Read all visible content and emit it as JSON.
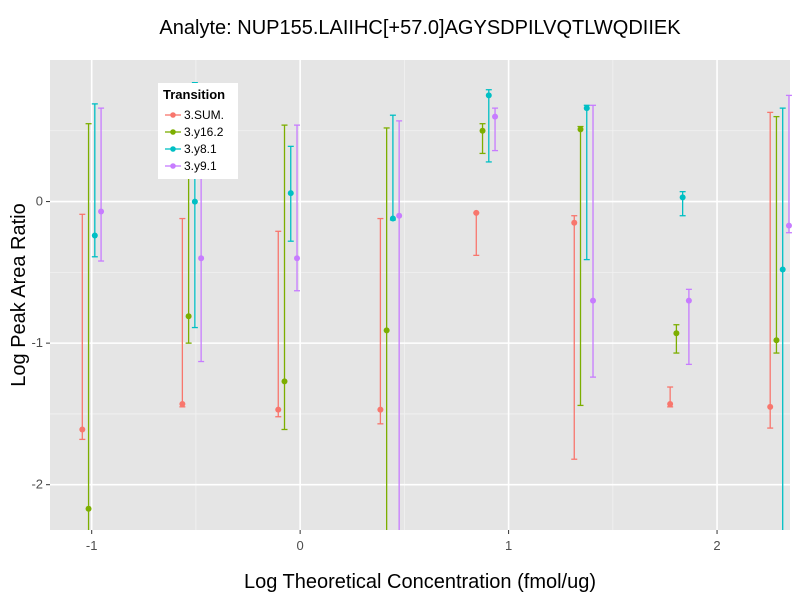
{
  "chart_data": {
    "type": "scatter",
    "title": "Analyte: NUP155.LAIIHC[+57.0]AGYSDPILVQTLWQDIIEK",
    "xlabel": "Log Theoretical Concentration (fmol/ug)",
    "ylabel": "Log Peak Area Ratio",
    "xlim": [
      -1.2,
      2.35
    ],
    "ylim": [
      -2.32,
      1.0
    ],
    "x_ticks": [
      -1,
      0,
      1,
      2
    ],
    "x_tick_labels": [
      "-1",
      "0",
      "1",
      "2"
    ],
    "y_ticks": [
      -2,
      -1,
      0
    ],
    "y_tick_labels": [
      "-2",
      "-1",
      "0"
    ],
    "grid": true,
    "legend": {
      "title": "Transition",
      "position": "top-left"
    },
    "x": [
      -1.0,
      -0.52,
      -0.06,
      0.43,
      0.89,
      1.36,
      1.82,
      2.3
    ],
    "series": [
      {
        "name": "3.SUM.",
        "color": "#F8766D",
        "points": [
          {
            "x": -1.0,
            "y": -1.61,
            "low": -1.68,
            "high": -0.09
          },
          {
            "x": -0.52,
            "y": -1.43,
            "low": -1.45,
            "high": -0.12
          },
          {
            "x": -0.06,
            "y": -1.47,
            "low": -1.52,
            "high": -0.21
          },
          {
            "x": 0.43,
            "y": -1.47,
            "low": -1.57,
            "high": -0.12
          },
          {
            "x": 0.89,
            "y": -0.08,
            "low": -0.38,
            "high": -0.08
          },
          {
            "x": 1.36,
            "y": -0.15,
            "low": -1.82,
            "high": -0.1
          },
          {
            "x": 1.82,
            "y": -1.43,
            "low": -1.45,
            "high": -1.31
          },
          {
            "x": 2.3,
            "y": -1.45,
            "low": -1.6,
            "high": 0.63
          }
        ]
      },
      {
        "name": "3.y16.2",
        "color": "#7CAE00",
        "points": [
          {
            "x": -1.0,
            "y": -2.17,
            "low": -2.4,
            "high": 0.55
          },
          {
            "x": -0.52,
            "y": -0.81,
            "low": -1.0,
            "high": 0.6
          },
          {
            "x": -0.06,
            "y": -1.27,
            "low": -1.61,
            "high": 0.54
          },
          {
            "x": 0.43,
            "y": -0.91,
            "low": -2.4,
            "high": 0.52
          },
          {
            "x": 0.89,
            "y": 0.5,
            "low": 0.34,
            "high": 0.55
          },
          {
            "x": 1.36,
            "y": 0.51,
            "low": -1.44,
            "high": 0.53
          },
          {
            "x": 1.82,
            "y": -0.93,
            "low": -1.07,
            "high": -0.87
          },
          {
            "x": 2.3,
            "y": -0.98,
            "low": -1.07,
            "high": 0.6
          }
        ]
      },
      {
        "name": "3.y8.1",
        "color": "#00BFC4",
        "points": [
          {
            "x": -1.0,
            "y": -0.24,
            "low": -0.39,
            "high": 0.69
          },
          {
            "x": -0.52,
            "y": 0.0,
            "low": -0.89,
            "high": 0.84
          },
          {
            "x": -0.06,
            "y": 0.06,
            "low": -0.28,
            "high": 0.39
          },
          {
            "x": 0.43,
            "y": -0.12,
            "low": -0.13,
            "high": 0.61
          },
          {
            "x": 0.89,
            "y": 0.75,
            "low": 0.28,
            "high": 0.79
          },
          {
            "x": 1.36,
            "y": 0.66,
            "low": -0.41,
            "high": 0.68
          },
          {
            "x": 1.82,
            "y": 0.03,
            "low": -0.1,
            "high": 0.07
          },
          {
            "x": 2.3,
            "y": -0.48,
            "low": -2.4,
            "high": 0.66
          }
        ]
      },
      {
        "name": "3.y9.1",
        "color": "#C77CFF",
        "points": [
          {
            "x": -1.0,
            "y": -0.07,
            "low": -0.42,
            "high": 0.66
          },
          {
            "x": -0.52,
            "y": -0.4,
            "low": -1.13,
            "high": 0.41
          },
          {
            "x": -0.06,
            "y": -0.4,
            "low": -0.63,
            "high": 0.54
          },
          {
            "x": 0.43,
            "y": -0.1,
            "low": -2.4,
            "high": 0.57
          },
          {
            "x": 0.89,
            "y": 0.6,
            "low": 0.36,
            "high": 0.66
          },
          {
            "x": 1.36,
            "y": -0.7,
            "low": -1.24,
            "high": 0.68
          },
          {
            "x": 1.82,
            "y": -0.7,
            "low": -1.15,
            "high": -0.62
          },
          {
            "x": 2.3,
            "y": -0.17,
            "low": -0.22,
            "high": 0.75
          }
        ]
      }
    ]
  }
}
